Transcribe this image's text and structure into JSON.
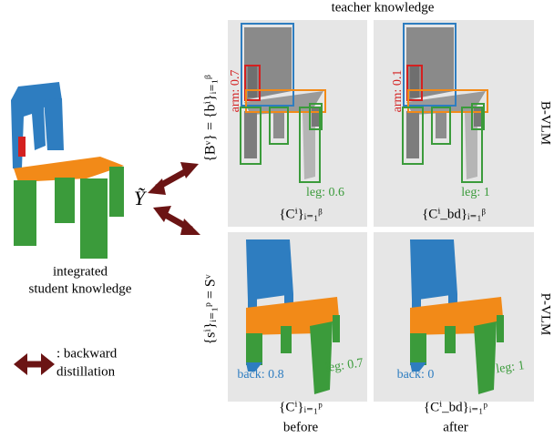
{
  "header": {
    "title": "teacher knowledge"
  },
  "rows": {
    "top": "B-VLM",
    "bottom": "P-VLM"
  },
  "columns": {
    "left": "before",
    "right": "after"
  },
  "student": {
    "line1": "integrated",
    "line2": "student knowledge",
    "symbol": "Ỹ"
  },
  "legend": {
    "line1": ": backward",
    "line2": "distillation"
  },
  "formulas": {
    "bbox": "{Bᵛ} = {bⁱ}ᵢ₌₁ᵝ",
    "seg": "{sⁱ}ᵢ₌₁ᵖ = Sᵛ",
    "top_before": "{Cⁱ}ᵢ₌₁ᵝ",
    "top_after": "{Cⁱ_bd}ᵢ₌₁ᵝ",
    "bottom_before": "{Cⁱ}ᵢ₌₁ᵖ",
    "bottom_after": "{Cⁱ_bd}ᵢ₌₁ᵖ"
  },
  "panels": {
    "top_before": {
      "arm": "arm: 0.7",
      "leg": "leg: 0.6"
    },
    "top_after": {
      "arm": "arm: 0.1",
      "leg": "leg: 1"
    },
    "bottom_before": {
      "back": "back: 0.8",
      "leg": "leg: 0.7"
    },
    "bottom_after": {
      "back": "back: 0",
      "leg": "leg: 1"
    }
  }
}
